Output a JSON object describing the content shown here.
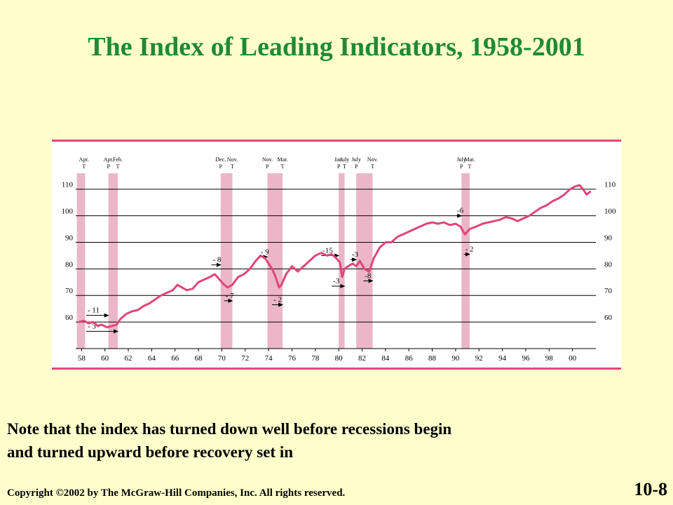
{
  "slide": {
    "title": "The Index of Leading Indicators, 1958-2001",
    "note_line1": "Note that the index has turned down well before recessions begin",
    "note_line2": "and turned upward before recovery set in",
    "copyright": "Copyright ©2002 by The McGraw-Hill Companies, Inc.  All rights reserved.",
    "slide_number": "10-8"
  },
  "colors": {
    "background": "#FFFFCC",
    "title": "#1E8A34",
    "series": "#E0457C",
    "recession_band": "#EBB6C8",
    "frame_border": "#E0457C"
  },
  "chart_data": {
    "type": "line",
    "title": "",
    "xlabel": "",
    "ylabel": "",
    "xlim": [
      1957.5,
      2002
    ],
    "ylim": [
      50,
      116
    ],
    "x_ticks": [
      "58",
      "60",
      "62",
      "64",
      "66",
      "68",
      "70",
      "72",
      "74",
      "76",
      "78",
      "80",
      "82",
      "84",
      "86",
      "88",
      "90",
      "92",
      "94",
      "96",
      "98",
      "00"
    ],
    "y_ticks": [
      60,
      70,
      80,
      90,
      100,
      110
    ],
    "grid": "horizontal",
    "series": [
      {
        "x": [
          1957.8,
          1958.2,
          1958.6,
          1959.0,
          1959.4,
          1959.7,
          1960.2,
          1960.6,
          1961.0,
          1961.3,
          1961.8,
          1962.3,
          1962.8,
          1963.3,
          1963.8,
          1964.3,
          1964.8,
          1965.3,
          1965.8,
          1966.2,
          1966.6,
          1967.0,
          1967.5,
          1968.0,
          1968.5,
          1969.0,
          1969.4,
          1969.8,
          1970.2,
          1970.5,
          1970.9,
          1971.4,
          1971.9,
          1972.4,
          1972.9,
          1973.3,
          1973.7,
          1974.0,
          1974.3,
          1974.6,
          1974.9,
          1975.1,
          1975.5,
          1976.0,
          1976.5,
          1977.0,
          1977.5,
          1978.0,
          1978.5,
          1979.0,
          1979.4,
          1979.8,
          1980.1,
          1980.3,
          1980.5,
          1980.8,
          1981.2,
          1981.5,
          1981.8,
          1982.2,
          1982.6,
          1983.0,
          1983.5,
          1984.0,
          1984.5,
          1985.0,
          1985.5,
          1986.0,
          1986.5,
          1987.0,
          1987.5,
          1988.0,
          1988.5,
          1989.0,
          1989.5,
          1990.0,
          1990.4,
          1990.8,
          1991.2,
          1991.8,
          1992.3,
          1992.8,
          1993.3,
          1993.8,
          1994.3,
          1994.8,
          1995.3,
          1995.8,
          1996.3,
          1996.8,
          1997.3,
          1997.8,
          1998.3,
          1998.8,
          1999.3,
          1999.8,
          2000.2,
          2000.6,
          2000.9,
          2001.2,
          2001.5
        ],
        "values": [
          60,
          60.5,
          59.5,
          60,
          58.5,
          59,
          58,
          58.5,
          59,
          61,
          63,
          64,
          64.5,
          66,
          67,
          68.5,
          70,
          71,
          72,
          74,
          73,
          72,
          72.5,
          75,
          76,
          77,
          78,
          76,
          74,
          73,
          74,
          77,
          78,
          80,
          83,
          85,
          84,
          82,
          80,
          77,
          73,
          74,
          78,
          81,
          79,
          81,
          83,
          85,
          86,
          85,
          85.5,
          84,
          82.5,
          77,
          80,
          81,
          82,
          81,
          83,
          80,
          79,
          84,
          88,
          90,
          90,
          92,
          93,
          94,
          95,
          96,
          97,
          97.5,
          97,
          97.5,
          96.5,
          97,
          96,
          93,
          95,
          96,
          97,
          97.5,
          98,
          98.5,
          99.5,
          99,
          98,
          99,
          100,
          101.5,
          103,
          104,
          105.5,
          106.5,
          108,
          110,
          111,
          111.5,
          110,
          108,
          109
        ]
      }
    ],
    "recessions": [
      {
        "start": 1957.6,
        "end": 1958.3
      },
      {
        "start": 1960.3,
        "end": 1961.1
      },
      {
        "start": 1969.9,
        "end": 1970.9
      },
      {
        "start": 1973.9,
        "end": 1975.2
      },
      {
        "start": 1980.0,
        "end": 1980.5
      },
      {
        "start": 1981.5,
        "end": 1982.9
      },
      {
        "start": 1990.5,
        "end": 1991.2
      }
    ],
    "turning_points": [
      {
        "x": 1958.2,
        "month": "Apr.",
        "type": "T"
      },
      {
        "x": 1960.3,
        "month": "Apr.",
        "type": "P"
      },
      {
        "x": 1961.1,
        "month": "Feb.",
        "type": "T"
      },
      {
        "x": 1969.9,
        "month": "Dec.",
        "type": "P"
      },
      {
        "x": 1970.9,
        "month": "Nov.",
        "type": "T"
      },
      {
        "x": 1973.9,
        "month": "Nov.",
        "type": "P"
      },
      {
        "x": 1975.2,
        "month": "Mar.",
        "type": "T"
      },
      {
        "x": 1980.0,
        "month": "Jan.",
        "type": "P"
      },
      {
        "x": 1980.5,
        "month": "July",
        "type": "T"
      },
      {
        "x": 1981.5,
        "month": "July",
        "type": "P"
      },
      {
        "x": 1982.9,
        "month": "Nov.",
        "type": "T"
      },
      {
        "x": 1990.5,
        "month": "July",
        "type": "P"
      },
      {
        "x": 1991.2,
        "month": "Mar.",
        "type": "T"
      }
    ],
    "lead_annotations": [
      {
        "label": "- 11",
        "x": 1958.4,
        "y": 62.5,
        "arrow_end": 1960.3
      },
      {
        "label": "- 3",
        "x": 1958.4,
        "y": 56.5,
        "arrow_end": 1961.1
      },
      {
        "label": "- 8",
        "x": 1969.1,
        "y": 81.5,
        "arrow_end": 1969.9
      },
      {
        "label": "- 7",
        "x": 1970.2,
        "y": 68.0,
        "arrow_end": 1970.9
      },
      {
        "label": "- 9",
        "x": 1973.2,
        "y": 84.5,
        "arrow_end": 1973.9
      },
      {
        "label": "- 2",
        "x": 1974.3,
        "y": 66.5,
        "arrow_end": 1975.2
      },
      {
        "label": "-15",
        "x": 1978.5,
        "y": 85.0,
        "arrow_end": 1980.0
      },
      {
        "label": "-3",
        "x": 1979.4,
        "y": 73.5,
        "arrow_end": 1980.5
      },
      {
        "label": "-3",
        "x": 1981.0,
        "y": 83.5,
        "arrow_end": 1981.5
      },
      {
        "label": "-8",
        "x": 1982.1,
        "y": 75.5,
        "arrow_end": 1982.9
      },
      {
        "label": "-6",
        "x": 1990.0,
        "y": 100.0,
        "arrow_end": 1990.5
      },
      {
        "label": "- 2",
        "x": 1990.7,
        "y": 85.5,
        "arrow_end": 1991.2
      }
    ]
  }
}
